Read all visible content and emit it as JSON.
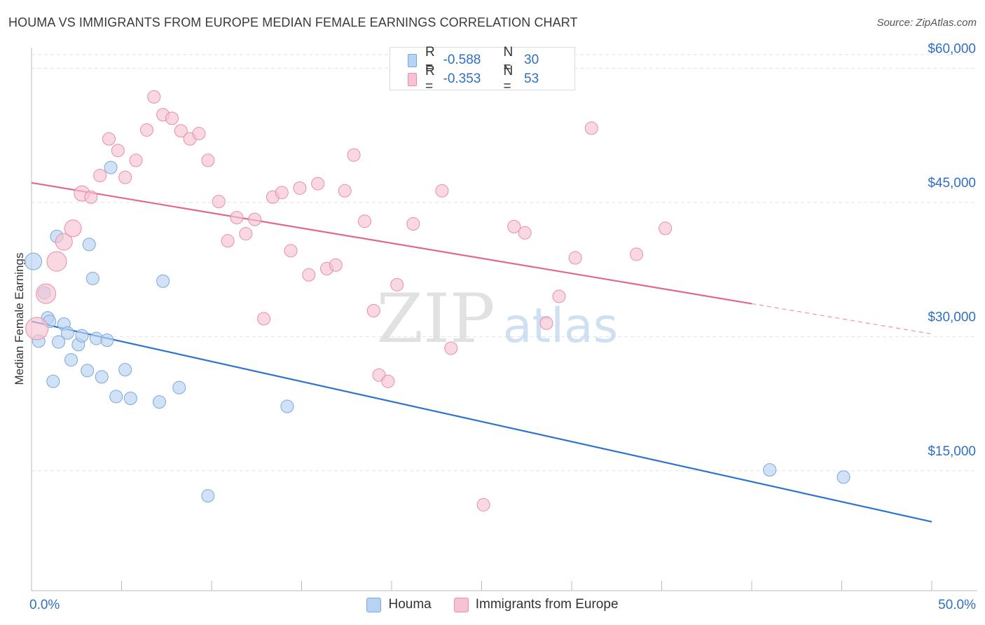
{
  "header": {
    "title": "HOUMA VS IMMIGRANTS FROM EUROPE MEDIAN FEMALE EARNINGS CORRELATION CHART",
    "source": "Source: ZipAtlas.com"
  },
  "watermark": {
    "zip": "ZIP",
    "atlas": "atlas"
  },
  "colors": {
    "blue_fill": "#b8d3f2",
    "blue_stroke": "#7aa7dc",
    "blue_line": "#2f72d0",
    "pink_fill": "#f7c3d2",
    "pink_stroke": "#e68eaa",
    "pink_line": "#e06890",
    "axis_text": "#2f6fc4",
    "grid": "#e2e2e2"
  },
  "legend_top": {
    "rows": [
      {
        "r_label": "R =",
        "r_value": "-0.588",
        "n_label": "N =",
        "n_value": "30"
      },
      {
        "r_label": "R =",
        "r_value": "-0.353",
        "n_label": "N =",
        "n_value": "53"
      }
    ]
  },
  "legend_bottom": {
    "items": [
      {
        "label": "Houma"
      },
      {
        "label": "Immigrants from Europe"
      }
    ]
  },
  "chart_data": {
    "type": "scatter",
    "title": "HOUMA VS IMMIGRANTS FROM EUROPE MEDIAN FEMALE EARNINGS CORRELATION CHART",
    "xlabel": "",
    "ylabel": "Median Female Earnings",
    "xlim": [
      0,
      50
    ],
    "ylim": [
      1600,
      62300
    ],
    "x_tick_labels": [
      {
        "value": 0,
        "label": "0.0%"
      },
      {
        "value": 50,
        "label": "50.0%"
      }
    ],
    "y_ticks": [
      {
        "value": 15000,
        "label": "$15,000"
      },
      {
        "value": 30000,
        "label": "$30,000"
      },
      {
        "value": 45000,
        "label": "$45,000"
      },
      {
        "value": 60000,
        "label": "$60,000"
      }
    ],
    "grid": true,
    "legend_position": "top-center",
    "series": [
      {
        "name": "Houma",
        "color": "blue",
        "R": -0.588,
        "N": 30,
        "trend": {
          "x0": 0,
          "y0": 31700,
          "x1": 50,
          "y1": 9300,
          "solid_to": 50
        },
        "points": [
          [
            0.1,
            38400,
            12
          ],
          [
            0.7,
            34900,
            9
          ],
          [
            0.9,
            32100,
            9
          ],
          [
            1.0,
            31700,
            9
          ],
          [
            0.4,
            29500,
            9
          ],
          [
            1.5,
            29400,
            9
          ],
          [
            1.8,
            31400,
            9
          ],
          [
            2.0,
            30400,
            9
          ],
          [
            2.2,
            27400,
            9
          ],
          [
            2.6,
            29100,
            9
          ],
          [
            2.8,
            30100,
            9
          ],
          [
            3.1,
            26200,
            9
          ],
          [
            3.6,
            29800,
            9
          ],
          [
            3.9,
            25500,
            9
          ],
          [
            4.2,
            29600,
            9
          ],
          [
            4.7,
            23300,
            9
          ],
          [
            5.2,
            26300,
            9
          ],
          [
            5.5,
            23100,
            9
          ],
          [
            7.1,
            22700,
            9
          ],
          [
            8.2,
            24300,
            9
          ],
          [
            4.4,
            48900,
            9
          ],
          [
            1.4,
            41200,
            9
          ],
          [
            3.2,
            40300,
            9
          ],
          [
            3.4,
            36500,
            9
          ],
          [
            7.3,
            36200,
            9
          ],
          [
            1.2,
            25000,
            9
          ],
          [
            14.2,
            22200,
            9
          ],
          [
            9.8,
            12200,
            9
          ],
          [
            41.0,
            15100,
            9
          ],
          [
            45.1,
            14300,
            9
          ]
        ]
      },
      {
        "name": "Immigrants from Europe",
        "color": "pink",
        "R": -0.353,
        "N": 53,
        "trend": {
          "x0": 0,
          "y0": 47200,
          "x1": 50,
          "y1": 30300,
          "solid_to": 40
        },
        "points": [
          [
            0.3,
            30900,
            16
          ],
          [
            0.8,
            34800,
            14
          ],
          [
            1.4,
            38400,
            14
          ],
          [
            1.8,
            40600,
            12
          ],
          [
            2.3,
            42100,
            12
          ],
          [
            2.8,
            46000,
            11
          ],
          [
            3.3,
            45600,
            9
          ],
          [
            3.8,
            48000,
            9
          ],
          [
            4.3,
            52100,
            9
          ],
          [
            4.8,
            50800,
            9
          ],
          [
            5.2,
            47800,
            9
          ],
          [
            5.8,
            49700,
            9
          ],
          [
            6.4,
            53100,
            9
          ],
          [
            6.8,
            56800,
            9
          ],
          [
            7.3,
            54800,
            9
          ],
          [
            7.8,
            54400,
            9
          ],
          [
            8.3,
            53000,
            9
          ],
          [
            8.8,
            52100,
            9
          ],
          [
            9.3,
            52700,
            9
          ],
          [
            9.8,
            49700,
            9
          ],
          [
            10.4,
            45100,
            9
          ],
          [
            10.9,
            40700,
            9
          ],
          [
            11.4,
            43300,
            9
          ],
          [
            11.9,
            41500,
            9
          ],
          [
            12.4,
            43100,
            9
          ],
          [
            12.9,
            32000,
            9
          ],
          [
            13.4,
            45600,
            9
          ],
          [
            13.9,
            46100,
            9
          ],
          [
            14.4,
            39600,
            9
          ],
          [
            14.9,
            46600,
            9
          ],
          [
            15.4,
            36900,
            9
          ],
          [
            15.9,
            47100,
            9
          ],
          [
            16.4,
            37600,
            9
          ],
          [
            16.9,
            38000,
            9
          ],
          [
            17.4,
            46300,
            9
          ],
          [
            17.9,
            50300,
            9
          ],
          [
            18.5,
            42900,
            9
          ],
          [
            19.0,
            32900,
            9
          ],
          [
            19.3,
            25700,
            9
          ],
          [
            19.8,
            25000,
            9
          ],
          [
            20.3,
            35800,
            9
          ],
          [
            21.2,
            42600,
            9
          ],
          [
            22.8,
            46300,
            9
          ],
          [
            23.3,
            28700,
            9
          ],
          [
            25.1,
            11200,
            9
          ],
          [
            26.8,
            42300,
            9
          ],
          [
            27.4,
            41600,
            9
          ],
          [
            28.6,
            31500,
            9
          ],
          [
            29.3,
            34500,
            9
          ],
          [
            30.2,
            38800,
            9
          ],
          [
            31.1,
            53300,
            9
          ],
          [
            33.6,
            39200,
            9
          ],
          [
            35.2,
            42100,
            9
          ]
        ]
      }
    ]
  }
}
